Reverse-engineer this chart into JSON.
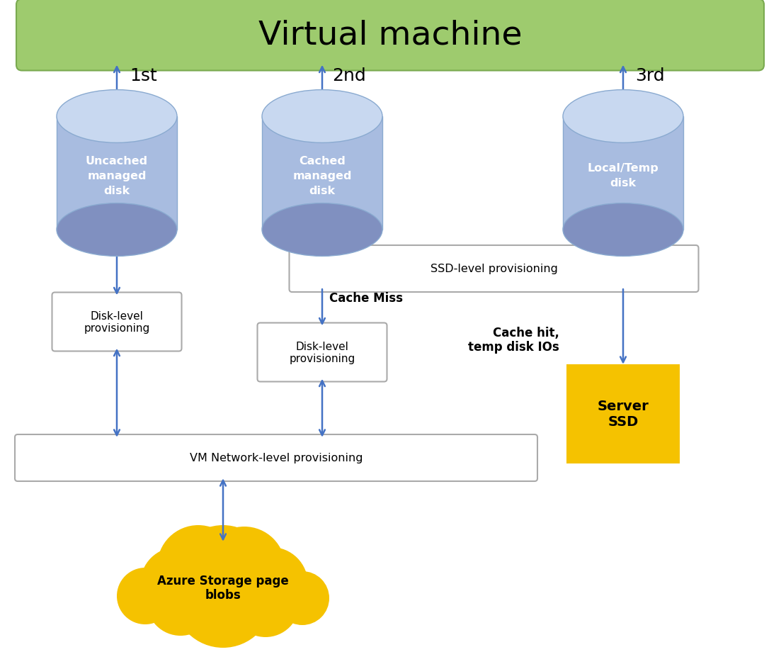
{
  "title": "Virtual machine",
  "title_bg_grad_top": "#9ecb6e",
  "title_bg": "#9ecb6e",
  "title_border": "#7aaa50",
  "disk_color_body": "#a8bce0",
  "disk_color_top": "#c8d8f0",
  "disk_color_side": "#8aaad0",
  "disk_color_bottom": "#8090c0",
  "arrow_color": "#4472c4",
  "box_edge": "#aaaaaa",
  "box_bg": "#ffffff",
  "server_ssd_bg": "#f5c200",
  "cloud_color": "#f5c200",
  "label_1st": "1st",
  "label_2nd": "2nd",
  "label_3rd": "3rd",
  "disk1_label": "Uncached\nmanaged\ndisk",
  "disk2_label": "Cached\nmanaged\ndisk",
  "disk3_label": "Local/Temp\ndisk",
  "box1_label": "Disk-level\nprovisioning",
  "box_ssd_label": "SSD-level provisioning",
  "box2_disk_label": "Disk-level\nprovisioning",
  "box_vm_label": "VM Network-level provisioning",
  "cache_miss_label": "Cache Miss",
  "cache_hit_label": "Cache hit,\ntemp disk IOs",
  "server_ssd_label": "Server\nSSD",
  "cloud_label": "Azure Storage page\nblobs"
}
